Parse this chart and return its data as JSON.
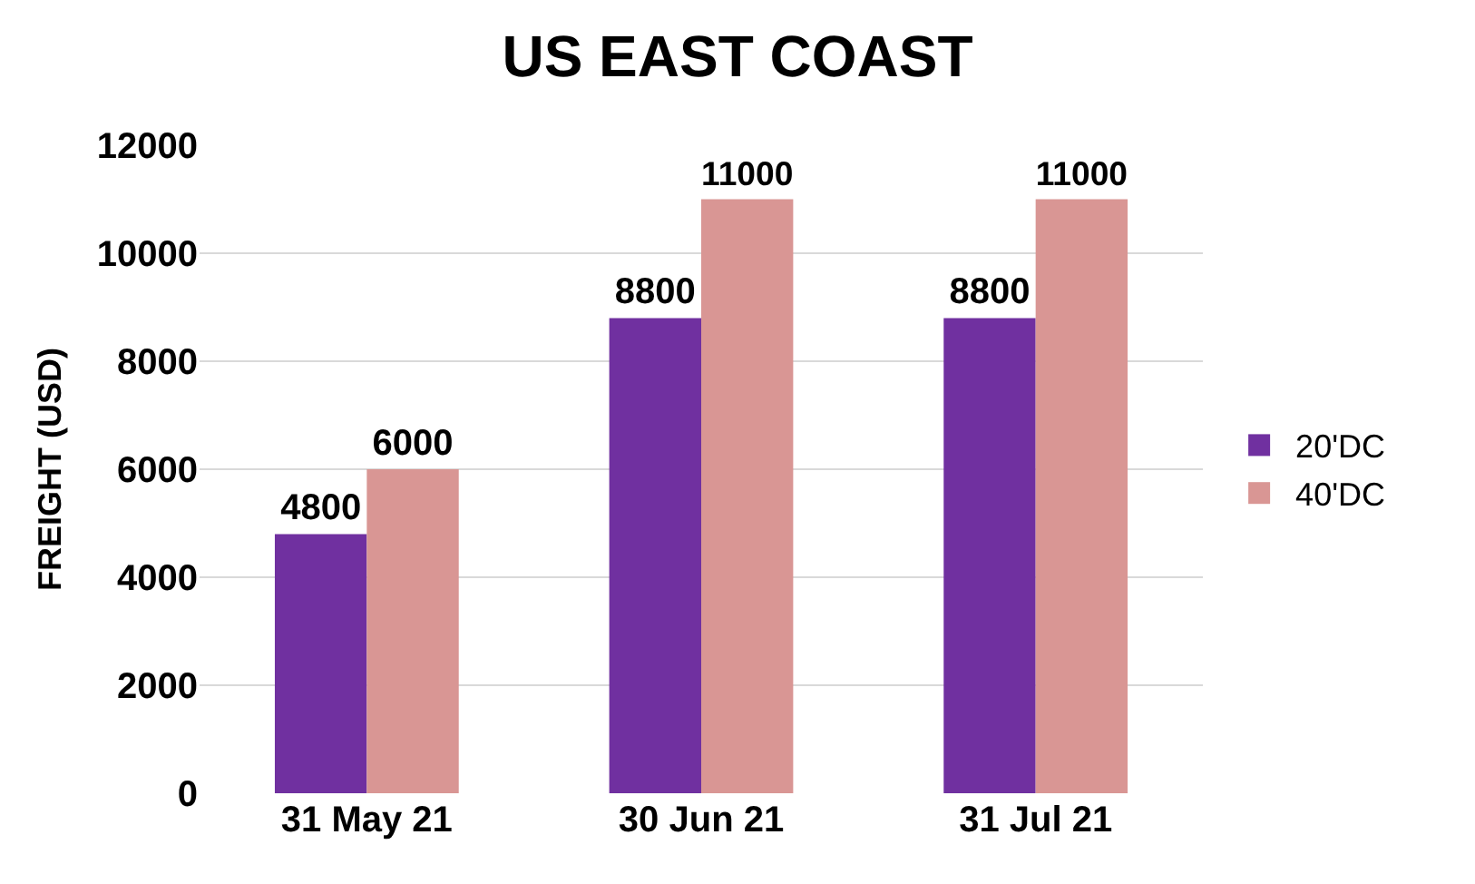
{
  "chart_data": {
    "type": "bar",
    "title": "US EAST COAST",
    "ylabel": "FREIGHT (USD)",
    "categories": [
      "31 May 21",
      "30 Jun 21",
      "31 Jul 21"
    ],
    "series": [
      {
        "name": "20'DC",
        "color": "#7030a0",
        "values": [
          4800,
          8800,
          8800
        ]
      },
      {
        "name": "40'DC",
        "color": "#d99694",
        "values": [
          6000,
          11000,
          11000
        ]
      }
    ],
    "ylim": [
      0,
      12000
    ],
    "yticks": [
      0,
      2000,
      4000,
      6000,
      8000,
      10000,
      12000
    ],
    "grid": "y",
    "legend": "right",
    "data_labels": true
  }
}
